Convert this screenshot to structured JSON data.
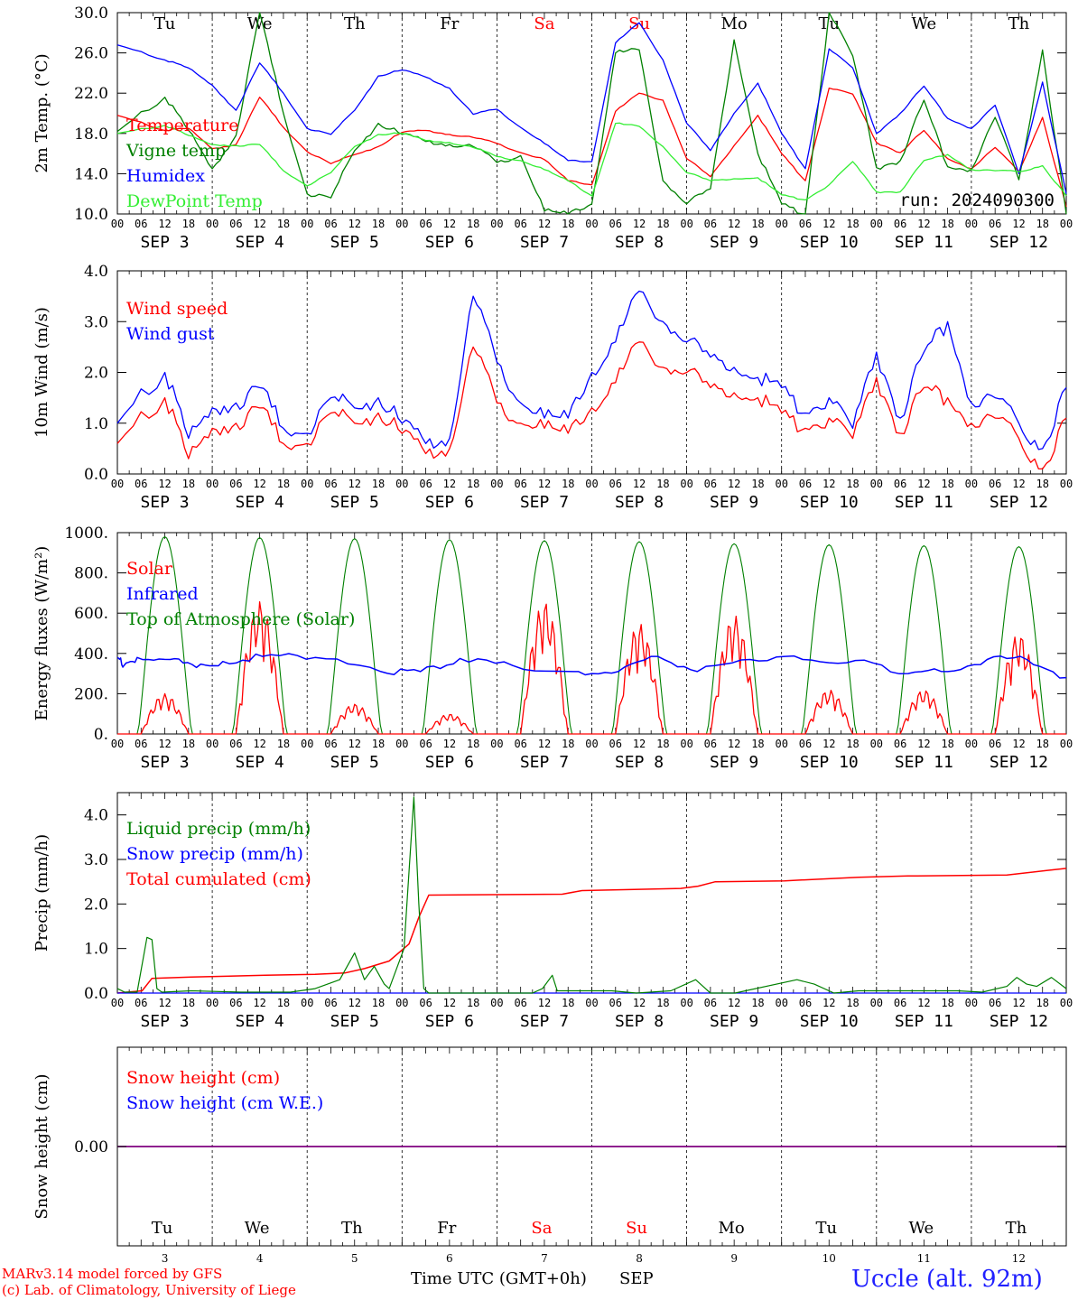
{
  "run_label": "run: 2024090300",
  "footer": {
    "model_line1": "MARv3.14 model forced by GFS",
    "model_line2": "(c) Lab. of Climatology, University of Liege",
    "time_axis": "Time UTC (GMT+0h)",
    "month": "SEP",
    "station": "Uccle (alt. 92m)"
  },
  "days": [
    "Tu",
    "We",
    "Th",
    "Fr",
    "Sa",
    "Su",
    "Mo",
    "Tu",
    "We",
    "Th"
  ],
  "weekend_flags": [
    false,
    false,
    false,
    false,
    true,
    true,
    false,
    false,
    false,
    false
  ],
  "dates": [
    "3",
    "4",
    "5",
    "6",
    "7",
    "8",
    "9",
    "10",
    "11",
    "12"
  ],
  "date_labels": [
    "SEP  3",
    "SEP  4",
    "SEP  5",
    "SEP  6",
    "SEP  7",
    "SEP  8",
    "SEP  9",
    "SEP 10",
    "SEP 11",
    "SEP 12"
  ],
  "hour_labels": [
    "00",
    "06",
    "12",
    "18"
  ],
  "final_hour_label": "00",
  "colors": {
    "red": "#ff0000",
    "green": "#008000",
    "blue": "#0000ff",
    "lightgreen": "#33ee33",
    "purple": "#7f007f",
    "weekend": "#ff0000"
  },
  "chart_data": [
    {
      "type": "line",
      "ylabel": "2m Temp. (°C)",
      "ylim": [
        10,
        30
      ],
      "yticks": [
        "10.0",
        "14.0",
        "18.0",
        "22.0",
        "26.0",
        "30.0"
      ],
      "x_hours": [
        0,
        12,
        18,
        24,
        30,
        36,
        42,
        48,
        54,
        60,
        66,
        72,
        78,
        84,
        90,
        96,
        102,
        108,
        114,
        120,
        126,
        132,
        138,
        144,
        150,
        156,
        162,
        168,
        174,
        180,
        186,
        192,
        198,
        204,
        210,
        216,
        222,
        228,
        234,
        240
      ],
      "series": [
        {
          "name": "Temperature",
          "color": "#ff0000",
          "values": [
            19.8,
            18.3,
            18.5,
            16.5,
            16.9,
            21.6,
            18.6,
            16.2,
            15.0,
            15.9,
            16.7,
            18.1,
            18.3,
            17.9,
            17.6,
            17.0,
            16.1,
            15.4,
            13.3,
            12.9,
            20.2,
            22.0,
            21.3,
            15.5,
            13.7,
            16.8,
            19.8,
            16.0,
            13.3,
            22.5,
            21.9,
            17.1,
            16.1,
            18.3,
            15.5,
            14.5,
            16.6,
            14.2,
            19.6,
            10.7
          ]
        },
        {
          "name": "Vigne temp",
          "color": "#008000",
          "values": [
            18.2,
            21.6,
            18.3,
            14.5,
            17.8,
            30.0,
            20.0,
            12.0,
            11.6,
            16.3,
            19.0,
            17.9,
            17.2,
            16.9,
            16.7,
            15.1,
            15.8,
            10.3,
            9.8,
            11.0,
            26.0,
            26.3,
            13.3,
            11.0,
            12.5,
            27.3,
            16.0,
            11.0,
            10.0,
            30.0,
            25.7,
            14.6,
            15.3,
            21.3,
            14.7,
            14.4,
            19.6,
            13.4,
            26.3,
            10.0
          ]
        },
        {
          "name": "Humidex",
          "color": "#0000ff",
          "values": [
            26.8,
            25.3,
            24.5,
            22.8,
            20.3,
            25.0,
            22.0,
            18.5,
            17.9,
            20.3,
            23.7,
            24.3,
            23.6,
            22.5,
            19.9,
            20.4,
            18.6,
            17.0,
            15.3,
            15.2,
            27.0,
            29.0,
            25.3,
            19.0,
            16.3,
            20.0,
            23.0,
            18.0,
            14.5,
            26.4,
            24.5,
            18.0,
            20.0,
            22.7,
            19.5,
            18.5,
            20.8,
            14.0,
            23.1,
            12.0
          ]
        },
        {
          "name": "DewPoint Temp",
          "color": "#33ee33",
          "values": [
            18.0,
            18.8,
            17.8,
            16.9,
            16.8,
            16.9,
            14.3,
            12.8,
            14.1,
            16.7,
            17.9,
            18.0,
            17.3,
            17.1,
            16.6,
            15.7,
            15.3,
            14.4,
            13.3,
            11.8,
            19.0,
            18.7,
            16.7,
            14.1,
            13.3,
            13.5,
            13.6,
            11.9,
            11.4,
            12.9,
            15.2,
            12.2,
            12.2,
            15.3,
            15.9,
            14.4,
            14.3,
            14.2,
            14.8,
            11.8
          ]
        }
      ]
    },
    {
      "type": "line",
      "ylabel": "10m Wind (m/s)",
      "ylim": [
        0,
        4
      ],
      "yticks": [
        "0.0",
        "1.0",
        "2.0",
        "3.0",
        "4.0"
      ],
      "x_hours": [
        0,
        12,
        18,
        24,
        30,
        36,
        42,
        48,
        54,
        60,
        66,
        72,
        78,
        84,
        90,
        96,
        102,
        108,
        114,
        120,
        126,
        132,
        138,
        144,
        150,
        156,
        162,
        168,
        174,
        180,
        186,
        192,
        198,
        204,
        210,
        216,
        222,
        228,
        234,
        240
      ],
      "series": [
        {
          "name": "Wind speed",
          "color": "#ff0000",
          "values": [
            0.6,
            1.5,
            0.3,
            0.9,
            1.0,
            1.3,
            0.6,
            0.6,
            1.2,
            1.0,
            1.2,
            0.8,
            0.4,
            0.5,
            2.5,
            1.4,
            1.0,
            0.9,
            0.8,
            1.3,
            1.8,
            2.6,
            2.1,
            2.0,
            1.7,
            1.6,
            1.5,
            1.2,
            0.9,
            1.1,
            0.7,
            1.9,
            0.8,
            1.7,
            1.5,
            1.0,
            1.1,
            0.7,
            0.1,
            1.1
          ]
        },
        {
          "name": "Wind gust",
          "color": "#0000ff",
          "values": [
            1.0,
            2.0,
            0.7,
            1.3,
            1.4,
            1.7,
            0.9,
            0.8,
            1.5,
            1.3,
            1.5,
            1.0,
            0.6,
            0.7,
            3.5,
            2.2,
            1.4,
            1.1,
            1.1,
            2.0,
            2.6,
            3.6,
            3.0,
            2.6,
            2.3,
            2.1,
            1.9,
            1.7,
            1.2,
            1.5,
            0.9,
            2.4,
            1.1,
            2.4,
            3.0,
            1.4,
            1.5,
            1.0,
            0.5,
            1.7
          ]
        }
      ]
    },
    {
      "type": "line",
      "ylabel": "Energy fluxes (W/m²)",
      "ylim": [
        0,
        1000
      ],
      "yticks": [
        "0.",
        "200.",
        "400.",
        "600.",
        "800.",
        "1000."
      ],
      "solar_peaks": [
        200,
        660,
        150,
        100,
        660,
        550,
        590,
        220,
        220,
        500
      ],
      "toa_peaks": [
        980,
        975,
        970,
        965,
        960,
        955,
        945,
        940,
        935,
        930
      ],
      "infrared_hourly": [
        [
          0,
          380
        ],
        [
          5,
          340
        ],
        [
          15,
          380
        ],
        [
          40,
          370
        ],
        [
          60,
          330
        ],
        [
          80,
          360
        ],
        [
          110,
          385
        ],
        [
          150,
          380
        ],
        [
          200,
          310
        ],
        [
          230,
          310
        ],
        [
          260,
          375
        ],
        [
          300,
          340
        ],
        [
          350,
          310
        ],
        [
          380,
          310
        ],
        [
          410,
          385
        ],
        [
          440,
          310
        ],
        [
          480,
          370
        ],
        [
          520,
          370
        ],
        [
          560,
          365
        ],
        [
          600,
          300
        ],
        [
          630,
          310
        ],
        [
          660,
          370
        ],
        [
          690,
          370
        ],
        [
          720,
          280
        ]
      ],
      "series": [
        {
          "name": "Solar",
          "color": "#ff0000"
        },
        {
          "name": "Infrared",
          "color": "#0000ff"
        },
        {
          "name": "Top of Atmosphere (Solar)",
          "color": "#008000"
        }
      ]
    },
    {
      "type": "line",
      "ylabel": "Precip (mm/h)",
      "ylim": [
        0,
        4.5
      ],
      "yticks": [
        "0.0",
        "1.0",
        "2.0",
        "3.0",
        "4.0"
      ],
      "liquid": [
        [
          0,
          0.1
        ],
        [
          3,
          0.02
        ],
        [
          8,
          0.02
        ],
        [
          12,
          1.25
        ],
        [
          14,
          1.2
        ],
        [
          16,
          0.1
        ],
        [
          18,
          0.02
        ],
        [
          30,
          0.05
        ],
        [
          50,
          0.02
        ],
        [
          70,
          0.02
        ],
        [
          80,
          0.1
        ],
        [
          90,
          0.3
        ],
        [
          96,
          0.9
        ],
        [
          100,
          0.3
        ],
        [
          104,
          0.6
        ],
        [
          108,
          0.2
        ],
        [
          110,
          0.1
        ],
        [
          116,
          1.0
        ],
        [
          120,
          4.4
        ],
        [
          122,
          2.0
        ],
        [
          124,
          0.1
        ],
        [
          126,
          0.0
        ],
        [
          140,
          0.0
        ],
        [
          168,
          0.0
        ],
        [
          172,
          0.1
        ],
        [
          176,
          0.4
        ],
        [
          178,
          0.05
        ],
        [
          200,
          0.05
        ],
        [
          210,
          0.0
        ],
        [
          224,
          0.05
        ],
        [
          234,
          0.3
        ],
        [
          238,
          0.1
        ],
        [
          240,
          0.0
        ],
        [
          250,
          0.0
        ],
        [
          275,
          0.3
        ],
        [
          282,
          0.2
        ],
        [
          290,
          0.0
        ],
        [
          300,
          0.05
        ],
        [
          320,
          0.05
        ],
        [
          340,
          0.05
        ],
        [
          350,
          0.02
        ],
        [
          360,
          0.15
        ],
        [
          364,
          0.35
        ],
        [
          368,
          0.2
        ],
        [
          372,
          0.15
        ],
        [
          378,
          0.35
        ],
        [
          384,
          0.1
        ]
      ],
      "snow": [
        [
          0,
          0.0
        ],
        [
          384,
          0.0
        ]
      ],
      "cumulated": [
        [
          0,
          0.0
        ],
        [
          10,
          0.05
        ],
        [
          14,
          0.33
        ],
        [
          30,
          0.36
        ],
        [
          60,
          0.4
        ],
        [
          80,
          0.42
        ],
        [
          92,
          0.45
        ],
        [
          100,
          0.55
        ],
        [
          110,
          0.72
        ],
        [
          118,
          1.1
        ],
        [
          122,
          1.7
        ],
        [
          126,
          2.2
        ],
        [
          180,
          2.22
        ],
        [
          188,
          2.3
        ],
        [
          228,
          2.35
        ],
        [
          235,
          2.4
        ],
        [
          242,
          2.5
        ],
        [
          270,
          2.52
        ],
        [
          300,
          2.6
        ],
        [
          320,
          2.63
        ],
        [
          360,
          2.65
        ],
        [
          376,
          2.75
        ],
        [
          384,
          2.8
        ]
      ],
      "series": [
        {
          "name": "Liquid precip (mm/h)",
          "color": "#008000"
        },
        {
          "name": "Snow precip (mm/h)",
          "color": "#0000ff"
        },
        {
          "name": "Total cumulated (cm)",
          "color": "#ff0000"
        }
      ]
    },
    {
      "type": "line",
      "ylabel": "Snow height (cm)",
      "ytick": "0.00",
      "series": [
        {
          "name": "Snow height (cm)",
          "color": "#ff0000",
          "values": [
            0,
            0
          ]
        },
        {
          "name": "Snow height (cm W.E.)",
          "color": "#0000ff",
          "values": [
            0,
            0
          ]
        }
      ]
    }
  ]
}
